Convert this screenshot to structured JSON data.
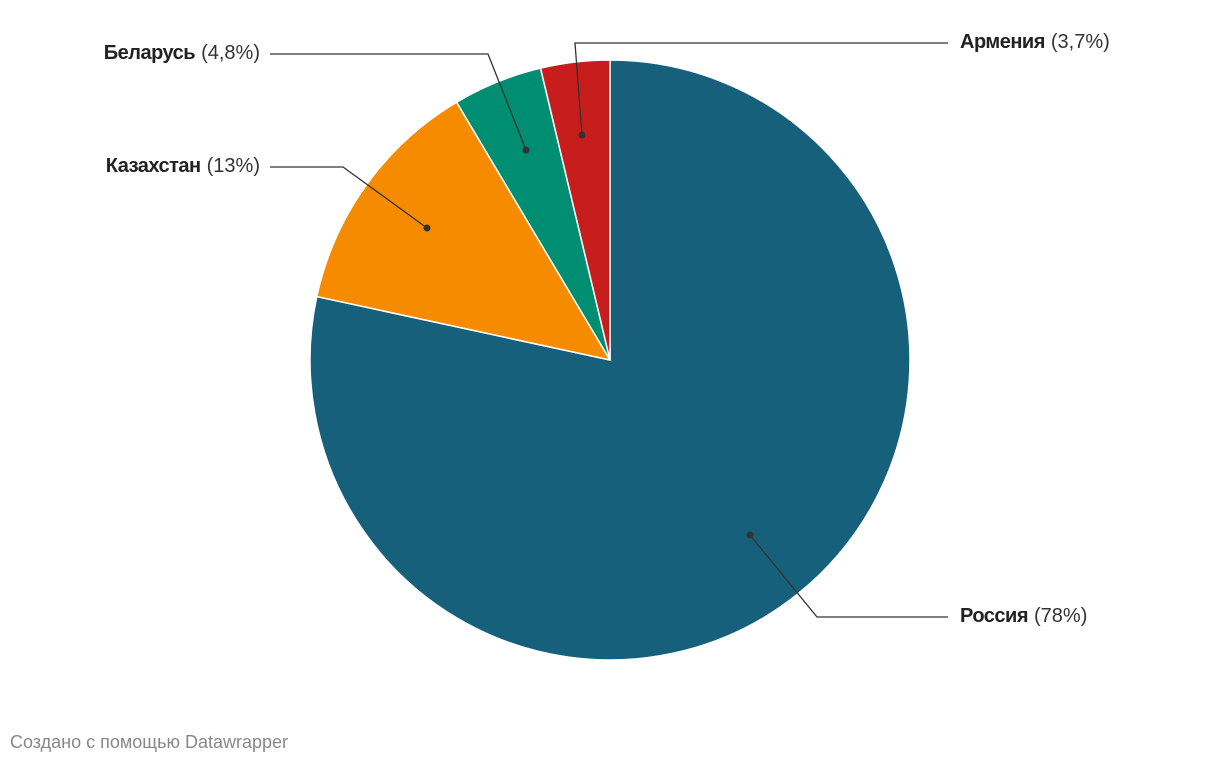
{
  "chart_data": {
    "type": "pie",
    "categories": [
      "Россия",
      "Казахстан",
      "Беларусь",
      "Армения"
    ],
    "values": [
      78,
      13,
      4.8,
      3.7
    ],
    "value_labels": [
      "(78%)",
      "(13%)",
      "(4,8%)",
      "(3,7%)"
    ],
    "colors": [
      "#17607b",
      "#f68b00",
      "#008e72",
      "#c71e1d"
    ],
    "footer": "Создано с помощью Datawrapper"
  }
}
